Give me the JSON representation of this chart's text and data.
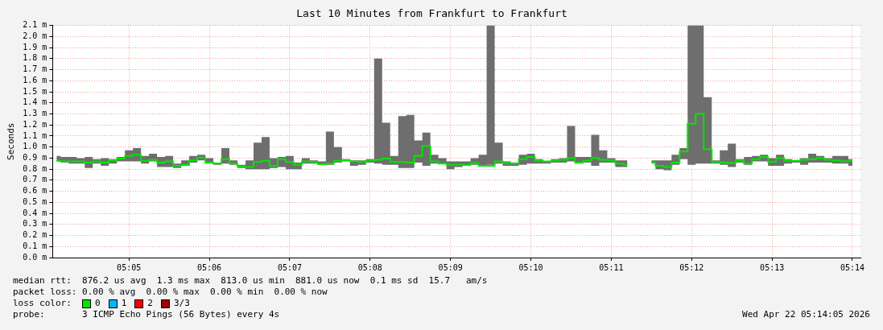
{
  "chart_data": {
    "type": "step",
    "title": "Last 10 Minutes from Frankfurt to Frankfurt",
    "ylabel": "Seconds",
    "x": [
      5.06833,
      5.07,
      5.07167,
      5.07333,
      5.075,
      5.07667,
      5.07833,
      5.08,
      5.08167,
      5.08333,
      5.085,
      5.08667,
      5.08833,
      5.09,
      5.09167,
      5.09333,
      5.095,
      5.09667,
      5.09833,
      5.1,
      5.10167,
      5.10333,
      5.105,
      5.10667,
      5.10833,
      5.11,
      5.11167,
      5.11333,
      5.115,
      5.11667,
      5.11833,
      5.12,
      5.12167,
      5.12333,
      5.125,
      5.12667,
      5.12833,
      5.13,
      5.13167,
      5.13333,
      5.135,
      5.13667,
      5.13833,
      5.14,
      5.14167,
      5.14333,
      5.145,
      5.14667,
      5.14833,
      5.15,
      5.15167,
      5.15333,
      5.155,
      5.15667,
      5.15833,
      5.16,
      5.16167,
      5.16333,
      5.165,
      5.16667,
      5.16833,
      5.17,
      5.17167,
      5.17333,
      5.175,
      5.17667,
      5.17833,
      5.18,
      5.18167,
      5.18333,
      5.185,
      5.18667,
      5.18833,
      5.19,
      5.19167,
      5.19333,
      5.195,
      5.19667,
      5.19833,
      5.2,
      5.20167,
      5.20333,
      5.205,
      5.20667,
      5.20833,
      5.21,
      5.21167,
      5.21333,
      5.215,
      5.21667,
      5.21833,
      5.22,
      5.22167,
      5.22333,
      5.225,
      5.22667,
      5.22833,
      5.23,
      5.23167,
      5.23333
    ],
    "series": [
      {
        "name": "0",
        "color": "#00e600",
        "values": [
          0.875,
          0.87,
          0.87,
          0.87,
          0.86,
          0.87,
          0.86,
          0.88,
          0.895,
          0.92,
          0.93,
          0.875,
          0.885,
          0.86,
          0.87,
          0.83,
          0.84,
          0.88,
          0.905,
          0.86,
          0.85,
          0.89,
          0.85,
          0.825,
          0.82,
          0.865,
          0.875,
          0.83,
          0.89,
          0.865,
          0.84,
          0.87,
          0.865,
          0.845,
          0.85,
          0.875,
          0.88,
          0.87,
          0.865,
          0.875,
          0.885,
          0.895,
          0.865,
          0.865,
          0.86,
          0.92,
          1.01,
          0.87,
          0.85,
          0.84,
          0.84,
          0.84,
          0.855,
          0.83,
          0.83,
          0.87,
          0.855,
          0.85,
          0.89,
          0.91,
          0.875,
          0.87,
          0.875,
          0.885,
          0.9,
          0.86,
          0.875,
          0.9,
          0.885,
          0.88,
          0.85,
          0.84,
          null,
          null,
          0.86,
          0.83,
          0.82,
          0.86,
          0.96,
          1.21,
          1.3,
          0.98,
          0.865,
          0.86,
          0.855,
          0.875,
          0.85,
          0.89,
          0.91,
          0.865,
          0.9,
          0.875,
          0.875,
          0.885,
          0.89,
          0.9,
          0.885,
          0.88,
          0.87,
          0.875
        ],
        "lower": [
          0.87,
          0.86,
          0.85,
          0.85,
          0.81,
          0.85,
          0.83,
          0.85,
          0.87,
          0.87,
          0.87,
          0.85,
          0.87,
          0.82,
          0.82,
          0.81,
          0.83,
          0.86,
          0.88,
          0.85,
          0.84,
          0.85,
          0.84,
          0.81,
          0.8,
          0.8,
          0.8,
          0.81,
          0.82,
          0.8,
          0.8,
          0.85,
          0.85,
          0.84,
          0.84,
          0.86,
          0.87,
          0.83,
          0.84,
          0.86,
          0.85,
          0.84,
          0.84,
          0.81,
          0.81,
          0.86,
          0.83,
          0.85,
          0.85,
          0.8,
          0.82,
          0.83,
          0.84,
          0.83,
          0.84,
          0.85,
          0.83,
          0.83,
          0.84,
          0.85,
          0.85,
          0.85,
          0.86,
          0.86,
          0.87,
          0.85,
          0.86,
          0.83,
          0.86,
          0.86,
          0.82,
          0.82,
          null,
          null,
          0.85,
          0.8,
          0.79,
          0.84,
          0.89,
          0.84,
          0.85,
          0.85,
          0.85,
          0.84,
          0.82,
          0.86,
          0.84,
          0.87,
          0.87,
          0.83,
          0.83,
          0.85,
          0.86,
          0.84,
          0.86,
          0.86,
          0.86,
          0.85,
          0.85,
          0.83
        ],
        "upper": [
          0.92,
          0.91,
          0.91,
          0.9,
          0.91,
          0.89,
          0.9,
          0.89,
          0.91,
          0.97,
          0.99,
          0.92,
          0.94,
          0.91,
          0.92,
          0.85,
          0.88,
          0.92,
          0.93,
          0.9,
          0.86,
          0.99,
          0.88,
          0.84,
          0.88,
          1.04,
          1.09,
          0.9,
          0.91,
          0.92,
          0.86,
          0.9,
          0.88,
          0.87,
          1.14,
          1,
          0.89,
          0.88,
          0.88,
          0.89,
          1.8,
          1.22,
          0.92,
          1.28,
          1.29,
          1.06,
          1.13,
          0.93,
          0.9,
          0.87,
          0.87,
          0.87,
          0.9,
          0.93,
          2.1,
          1.04,
          0.87,
          0.86,
          0.93,
          0.94,
          0.89,
          0.87,
          0.89,
          0.9,
          1.19,
          0.91,
          0.91,
          1.11,
          0.97,
          0.9,
          0.88,
          0.88,
          null,
          null,
          0.88,
          0.88,
          0.88,
          0.93,
          0.99,
          2.1,
          2.1,
          1.45,
          0.88,
          0.97,
          1.03,
          0.89,
          0.91,
          0.92,
          0.93,
          0.9,
          0.93,
          0.89,
          0.88,
          0.9,
          0.94,
          0.92,
          0.9,
          0.92,
          0.92,
          0.89
        ]
      }
    ],
    "xlim": [
      5.0675,
      5.235
    ],
    "xticks": [
      {
        "value": 5.08333,
        "label": "05:05"
      },
      {
        "value": 5.1,
        "label": "05:06"
      },
      {
        "value": 5.11667,
        "label": "05:07"
      },
      {
        "value": 5.13333,
        "label": "05:08"
      },
      {
        "value": 5.15,
        "label": "05:09"
      },
      {
        "value": 5.16667,
        "label": "05:10"
      },
      {
        "value": 5.18333,
        "label": "05:11"
      },
      {
        "value": 5.2,
        "label": "05:12"
      },
      {
        "value": 5.21667,
        "label": "05:13"
      },
      {
        "value": 5.23333,
        "label": "05:14"
      }
    ],
    "ylim": [
      0,
      2.1
    ],
    "yticks": [
      {
        "value": 0,
        "label": "0.0 m"
      },
      {
        "value": 0.1,
        "label": "0.1 m"
      },
      {
        "value": 0.2,
        "label": "0.2 m"
      },
      {
        "value": 0.3,
        "label": "0.3 m"
      },
      {
        "value": 0.4,
        "label": "0.4 m"
      },
      {
        "value": 0.5,
        "label": "0.5 m"
      },
      {
        "value": 0.6,
        "label": "0.6 m"
      },
      {
        "value": 0.7,
        "label": "0.7 m"
      },
      {
        "value": 0.8,
        "label": "0.8 m"
      },
      {
        "value": 0.9,
        "label": "0.9 m"
      },
      {
        "value": 1,
        "label": "1.0 m"
      },
      {
        "value": 1.1,
        "label": "1.1 m"
      },
      {
        "value": 1.2,
        "label": "1.2 m"
      },
      {
        "value": 1.3,
        "label": "1.3 m"
      },
      {
        "value": 1.4,
        "label": "1.4 m"
      },
      {
        "value": 1.5,
        "label": "1.5 m"
      },
      {
        "value": 1.6,
        "label": "1.6 m"
      },
      {
        "value": 1.7,
        "label": "1.7 m"
      },
      {
        "value": 1.8,
        "label": "1.8 m"
      },
      {
        "value": 1.9,
        "label": "1.9 m"
      },
      {
        "value": 2,
        "label": "2.0 m"
      },
      {
        "value": 2.1,
        "label": "2.1 m"
      }
    ],
    "grid": true,
    "legend": "bottom left",
    "legend_title": "loss color:",
    "annotations": [
      "median rtt:  876.2 us avg  1.3 ms max  813.0 us min  881.0 us now  0.1 ms sd  15.7   am/s",
      "packet loss: 0.00 % avg  0.00 % max  0.00 % min  0.00 % now",
      "1",
      "2",
      "3/3",
      "probe:       3 ICMP Echo Pings (56 Bytes) every 4s",
      "Wed Apr 22 05:14:05 2026"
    ]
  }
}
